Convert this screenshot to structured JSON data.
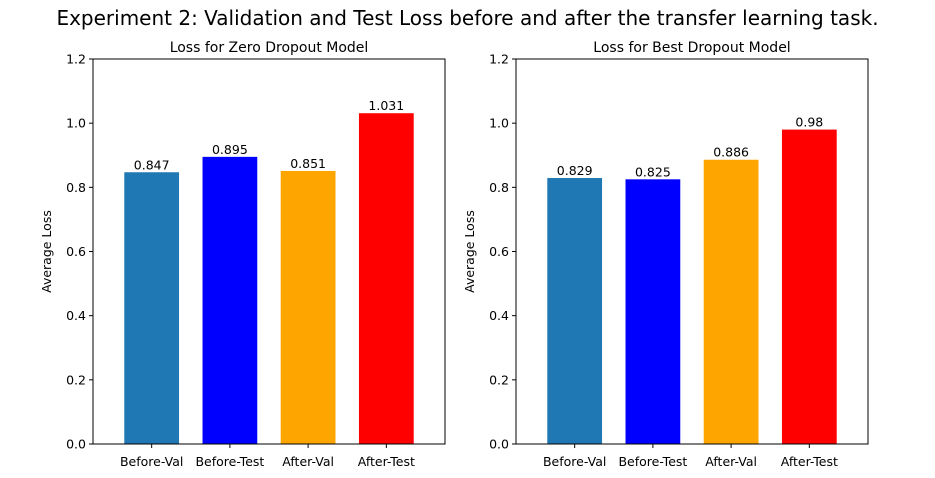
{
  "suptitle": "Experiment 2: Validation and Test Loss before and after the transfer learning task.",
  "chart_data": [
    {
      "type": "bar",
      "title": "Loss for Zero Dropout Model",
      "xlabel": "",
      "ylabel": "Average Loss",
      "categories": [
        "Before-Val",
        "Before-Test",
        "After-Val",
        "After-Test"
      ],
      "values": [
        0.847,
        0.895,
        0.851,
        1.031
      ],
      "value_labels": [
        "0.847",
        "0.895",
        "0.851",
        "1.031"
      ],
      "colors": [
        "#1f77b4",
        "#0000ff",
        "#ffa500",
        "#ff0000"
      ],
      "ylim": [
        0,
        1.2
      ],
      "yticks": [
        "0.0",
        "0.2",
        "0.4",
        "0.6",
        "0.8",
        "1.0",
        "1.2"
      ],
      "grid": false
    },
    {
      "type": "bar",
      "title": "Loss for Best Dropout Model",
      "xlabel": "",
      "ylabel": "Average Loss",
      "categories": [
        "Before-Val",
        "Before-Test",
        "After-Val",
        "After-Test"
      ],
      "values": [
        0.829,
        0.825,
        0.886,
        0.98
      ],
      "value_labels": [
        "0.829",
        "0.825",
        "0.886",
        "0.98"
      ],
      "colors": [
        "#1f77b4",
        "#0000ff",
        "#ffa500",
        "#ff0000"
      ],
      "ylim": [
        0,
        1.2
      ],
      "yticks": [
        "0.0",
        "0.2",
        "0.4",
        "0.6",
        "0.8",
        "1.0",
        "1.2"
      ],
      "grid": false
    }
  ]
}
